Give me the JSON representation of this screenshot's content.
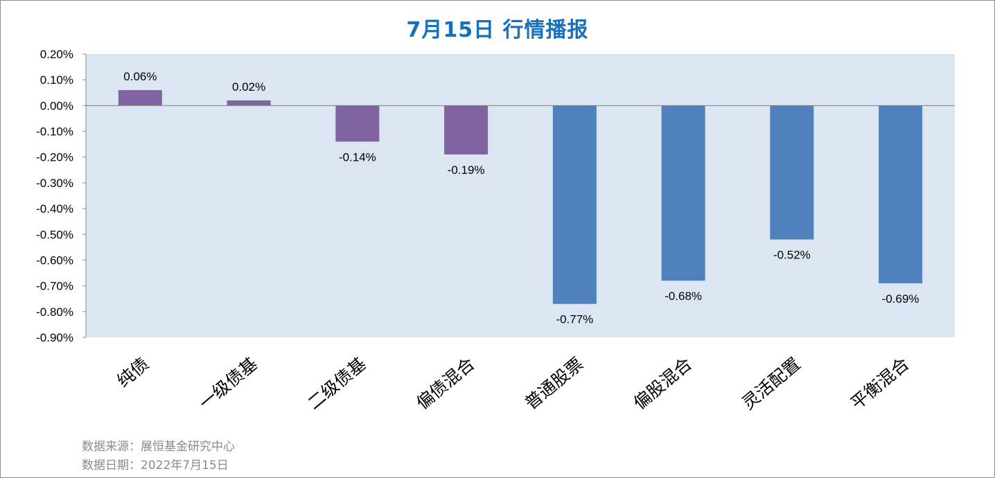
{
  "chart_data": {
    "type": "bar",
    "title": "7月15日  行情播报",
    "categories": [
      "纯债",
      "一级债基",
      "二级债基",
      "偏债混合",
      "普通股票",
      "偏股混合",
      "灵活配置",
      "平衡混合"
    ],
    "values": [
      0.06,
      0.02,
      -0.14,
      -0.19,
      -0.77,
      -0.68,
      -0.52,
      -0.69
    ],
    "value_labels": [
      "0.06%",
      "0.02%",
      "-0.14%",
      "-0.19%",
      "-0.77%",
      "-0.68%",
      "-0.52%",
      "-0.69%"
    ],
    "ylim": [
      -0.9,
      0.2
    ],
    "yticks": [
      0.2,
      0.1,
      0.0,
      -0.1,
      -0.2,
      -0.3,
      -0.4,
      -0.5,
      -0.6,
      -0.7,
      -0.8,
      -0.9
    ],
    "ytick_labels": [
      "0.20%",
      "0.10%",
      "0.00%",
      "-0.10%",
      "-0.20%",
      "-0.30%",
      "-0.40%",
      "-0.50%",
      "-0.60%",
      "-0.70%",
      "-0.80%",
      "-0.90%"
    ],
    "bar_colors": [
      "#8064a2",
      "#8064a2",
      "#8064a2",
      "#8064a2",
      "#4f81bd",
      "#4f81bd",
      "#4f81bd",
      "#4f81bd"
    ],
    "plot_background": "#dce6f2",
    "grid": false,
    "legend": "none"
  },
  "footer": {
    "source": "数据来源：展恒基金研究中心",
    "date": "数据日期：2022年7月15日"
  }
}
